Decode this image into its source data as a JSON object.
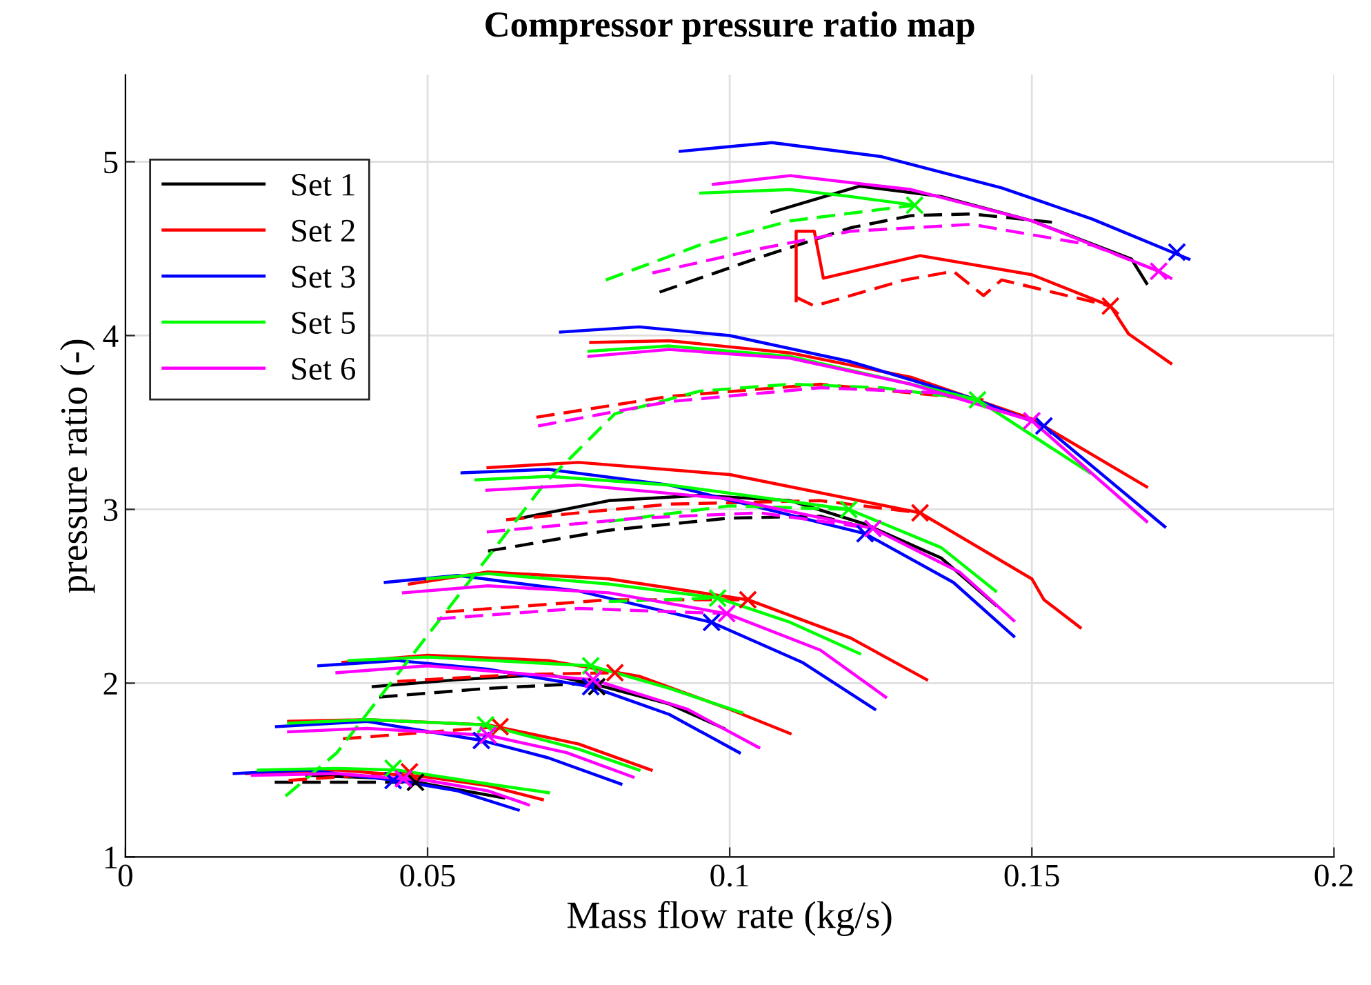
{
  "chart_data": {
    "type": "line",
    "title": "Compressor pressure ratio map",
    "xlabel": "Mass flow rate (kg/s)",
    "ylabel": "pressure ratio (-)",
    "xlim": [
      0,
      0.2
    ],
    "xticks": [
      0,
      0.05,
      0.1,
      0.15,
      0.2
    ],
    "ylim": [
      1,
      5.5
    ],
    "yticks": [
      1,
      2,
      3,
      4,
      5
    ],
    "grid": true,
    "legend": "top left",
    "series": [
      {
        "name": "Set 1",
        "color": "#000000",
        "line_style": "solid",
        "x": [
          0.03,
          0.045,
          0.0626
        ],
        "values": [
          1.47,
          1.45,
          1.34
        ]
      },
      {
        "color": "#000000",
        "line_style": "solid",
        "x": [
          0.041,
          0.055,
          0.07,
          0.078,
          0.09,
          0.099
        ],
        "values": [
          1.98,
          2.02,
          2.05,
          1.99,
          1.88,
          1.74
        ]
      },
      {
        "color": "#000000",
        "line_style": "solid",
        "x": [
          0.0655,
          0.08,
          0.095,
          0.11,
          0.122,
          0.135,
          0.144
        ],
        "values": [
          2.95,
          3.05,
          3.08,
          3.05,
          2.92,
          2.72,
          2.45
        ]
      },
      {
        "color": "#000000",
        "line_style": "solid",
        "x": [
          0.107,
          0.1215,
          0.135,
          0.15,
          0.1665,
          0.169
        ],
        "values": [
          4.71,
          4.86,
          4.8,
          4.66,
          4.44,
          4.3
        ]
      },
      {
        "color": "#000000",
        "line_style": "dashed",
        "x": [
          0.0247,
          0.048
        ],
        "values": [
          1.43,
          1.43
        ]
      },
      {
        "color": "#000000",
        "line_style": "dashed",
        "x": [
          0.042,
          0.06,
          0.077
        ],
        "values": [
          1.92,
          1.97,
          2.0
        ]
      },
      {
        "color": "#000000",
        "line_style": "dashed",
        "x": [
          0.06,
          0.08,
          0.1,
          0.115,
          0.122
        ],
        "values": [
          2.76,
          2.88,
          2.95,
          2.96,
          2.9
        ]
      },
      {
        "color": "#000000",
        "line_style": "dashed",
        "x": [
          0.0884,
          0.105,
          0.12,
          0.13,
          0.14,
          0.154
        ],
        "values": [
          4.25,
          4.45,
          4.62,
          4.69,
          4.7,
          4.65
        ]
      },
      {
        "name": "Set 2",
        "color": "#ff0000",
        "line_style": "solid",
        "x": [
          0.02,
          0.035,
          0.05,
          0.06,
          0.069
        ],
        "values": [
          1.48,
          1.5,
          1.46,
          1.41,
          1.33
        ]
      },
      {
        "color": "#ff0000",
        "line_style": "solid",
        "x": [
          0.027,
          0.04,
          0.06,
          0.075,
          0.087
        ],
        "values": [
          1.78,
          1.79,
          1.76,
          1.65,
          1.5
        ]
      },
      {
        "color": "#ff0000",
        "line_style": "solid",
        "x": [
          0.036,
          0.05,
          0.07,
          0.085,
          0.1,
          0.11
        ],
        "values": [
          2.12,
          2.16,
          2.13,
          2.04,
          1.85,
          1.71
        ]
      },
      {
        "color": "#ff0000",
        "line_style": "solid",
        "x": [
          0.047,
          0.06,
          0.08,
          0.103,
          0.12,
          0.1326
        ],
        "values": [
          2.57,
          2.64,
          2.6,
          2.48,
          2.26,
          2.02
        ]
      },
      {
        "color": "#ff0000",
        "line_style": "solid",
        "x": [
          0.06,
          0.075,
          0.1,
          0.1315,
          0.15,
          0.152,
          0.158
        ],
        "values": [
          3.24,
          3.27,
          3.2,
          2.98,
          2.6,
          2.48,
          2.32
        ]
      },
      {
        "color": "#ff0000",
        "line_style": "solid",
        "x": [
          0.077,
          0.09,
          0.11,
          0.13,
          0.15,
          0.169
        ],
        "values": [
          3.96,
          3.97,
          3.9,
          3.76,
          3.52,
          3.13
        ]
      },
      {
        "color": "#ff0000",
        "line_style": "solid",
        "x": [
          0.111,
          0.111,
          0.114,
          0.1155,
          0.1315,
          0.15,
          0.163,
          0.166,
          0.173
        ],
        "values": [
          4.2,
          4.6,
          4.6,
          4.33,
          4.46,
          4.35,
          4.17,
          4.01,
          3.84
        ]
      },
      {
        "color": "#ff0000",
        "line_style": "dashed",
        "x": [
          0.027,
          0.047
        ],
        "values": [
          1.44,
          1.49
        ]
      },
      {
        "color": "#ff0000",
        "line_style": "dashed",
        "x": [
          0.036,
          0.062
        ],
        "values": [
          1.68,
          1.75
        ]
      },
      {
        "color": "#ff0000",
        "line_style": "dashed",
        "x": [
          0.045,
          0.065,
          0.081
        ],
        "values": [
          2.01,
          2.05,
          2.06
        ]
      },
      {
        "color": "#ff0000",
        "line_style": "dashed",
        "x": [
          0.053,
          0.08,
          0.103
        ],
        "values": [
          2.41,
          2.48,
          2.48
        ]
      },
      {
        "color": "#ff0000",
        "line_style": "dashed",
        "x": [
          0.063,
          0.09,
          0.115,
          0.1315
        ],
        "values": [
          2.94,
          3.03,
          3.05,
          2.98
        ]
      },
      {
        "color": "#ff0000",
        "line_style": "dashed",
        "x": [
          0.068,
          0.09,
          0.115,
          0.142
        ],
        "values": [
          3.53,
          3.65,
          3.72,
          3.63
        ]
      },
      {
        "color": "#ff0000",
        "line_style": "dashed",
        "x": [
          0.111,
          0.114,
          0.129,
          0.137,
          0.142,
          0.145,
          0.163
        ],
        "values": [
          4.22,
          4.17,
          4.32,
          4.37,
          4.23,
          4.32,
          4.17
        ]
      },
      {
        "name": "Set 3",
        "color": "#0000ff",
        "line_style": "solid",
        "x": [
          0.018,
          0.03,
          0.045,
          0.055,
          0.065
        ],
        "values": [
          1.48,
          1.5,
          1.44,
          1.38,
          1.27
        ]
      },
      {
        "color": "#0000ff",
        "line_style": "solid",
        "x": [
          0.025,
          0.04,
          0.059,
          0.07,
          0.082
        ],
        "values": [
          1.75,
          1.78,
          1.67,
          1.57,
          1.42
        ]
      },
      {
        "color": "#0000ff",
        "line_style": "solid",
        "x": [
          0.032,
          0.045,
          0.06,
          0.077,
          0.09,
          0.1016
        ],
        "values": [
          2.1,
          2.13,
          2.08,
          1.98,
          1.82,
          1.6
        ]
      },
      {
        "color": "#0000ff",
        "line_style": "solid",
        "x": [
          0.043,
          0.055,
          0.075,
          0.097,
          0.112,
          0.124
        ],
        "values": [
          2.58,
          2.62,
          2.53,
          2.35,
          2.12,
          1.85
        ]
      },
      {
        "color": "#0000ff",
        "line_style": "solid",
        "x": [
          0.0557,
          0.07,
          0.09,
          0.1224,
          0.137,
          0.147
        ],
        "values": [
          3.21,
          3.23,
          3.14,
          2.86,
          2.58,
          2.27
        ]
      },
      {
        "color": "#0000ff",
        "line_style": "solid",
        "x": [
          0.072,
          0.085,
          0.1,
          0.12,
          0.14,
          0.152,
          0.172
        ],
        "values": [
          4.02,
          4.05,
          4.0,
          3.85,
          3.64,
          3.48,
          2.9
        ]
      },
      {
        "color": "#0000ff",
        "line_style": "solid",
        "x": [
          0.0918,
          0.107,
          0.125,
          0.145,
          0.16,
          0.176
        ],
        "values": [
          5.06,
          5.11,
          5.03,
          4.85,
          4.67,
          4.44
        ]
      },
      {
        "name": "Set 5",
        "color": "#00ff00",
        "line_style": "solid",
        "x": [
          0.022,
          0.035,
          0.045,
          0.06,
          0.07
        ],
        "values": [
          1.5,
          1.51,
          1.5,
          1.42,
          1.37
        ]
      },
      {
        "color": "#00ff00",
        "line_style": "solid",
        "x": [
          0.027,
          0.04,
          0.0596,
          0.075,
          0.085
        ],
        "values": [
          1.77,
          1.79,
          1.76,
          1.62,
          1.5
        ]
      },
      {
        "color": "#00ff00",
        "line_style": "solid",
        "x": [
          0.037,
          0.05,
          0.077,
          0.09,
          0.102
        ],
        "values": [
          2.13,
          2.15,
          2.1,
          1.97,
          1.83
        ]
      },
      {
        "color": "#00ff00",
        "line_style": "solid",
        "x": [
          0.05,
          0.06,
          0.08,
          0.098,
          0.11,
          0.1215
        ],
        "values": [
          2.6,
          2.63,
          2.57,
          2.49,
          2.35,
          2.17
        ]
      },
      {
        "color": "#00ff00",
        "line_style": "solid",
        "x": [
          0.058,
          0.07,
          0.09,
          0.1197,
          0.135,
          0.144
        ],
        "values": [
          3.17,
          3.19,
          3.14,
          3.0,
          2.78,
          2.53
        ]
      },
      {
        "color": "#00ff00",
        "line_style": "solid",
        "x": [
          0.0767,
          0.09,
          0.11,
          0.13,
          0.141,
          0.1596
        ],
        "values": [
          3.91,
          3.94,
          3.88,
          3.72,
          3.63,
          3.21
        ]
      },
      {
        "color": "#00ff00",
        "line_style": "solid",
        "x": [
          0.0952,
          0.11,
          0.12,
          0.1306
        ],
        "values": [
          4.82,
          4.84,
          4.8,
          4.75
        ]
      },
      {
        "color": "#00ff00",
        "line_style": "dashed",
        "x": [
          0.0265,
          0.035,
          0.045,
          0.055,
          0.0694,
          0.081,
          0.095,
          0.11,
          0.125,
          0.141
        ],
        "values": [
          1.35,
          1.6,
          2.05,
          2.5,
          3.15,
          3.55,
          3.68,
          3.72,
          3.7,
          3.63
        ]
      },
      {
        "color": "#00ff00",
        "line_style": "dashed",
        "x": [
          0.08,
          0.1,
          0.1197
        ],
        "values": [
          2.93,
          3.02,
          3.0
        ]
      },
      {
        "color": "#00ff00",
        "line_style": "dashed",
        "x": [
          0.08,
          0.098
        ],
        "values": [
          2.47,
          2.49
        ]
      },
      {
        "color": "#00ff00",
        "line_style": "dashed",
        "x": [
          0.0795,
          0.095,
          0.11,
          0.1306
        ],
        "values": [
          4.32,
          4.52,
          4.66,
          4.75
        ]
      },
      {
        "name": "Set 6",
        "color": "#ff00ff",
        "line_style": "solid",
        "x": [
          0.021,
          0.035,
          0.05,
          0.06,
          0.0667
        ],
        "values": [
          1.47,
          1.48,
          1.44,
          1.38,
          1.3
        ]
      },
      {
        "color": "#ff00ff",
        "line_style": "solid",
        "x": [
          0.027,
          0.04,
          0.06,
          0.073,
          0.084
        ],
        "values": [
          1.72,
          1.74,
          1.7,
          1.6,
          1.46
        ]
      },
      {
        "color": "#ff00ff",
        "line_style": "solid",
        "x": [
          0.035,
          0.05,
          0.0774,
          0.093,
          0.1048
        ],
        "values": [
          2.06,
          2.1,
          2.02,
          1.85,
          1.63
        ]
      },
      {
        "color": "#ff00ff",
        "line_style": "solid",
        "x": [
          0.046,
          0.06,
          0.08,
          0.0995,
          0.115,
          0.1258
        ],
        "values": [
          2.52,
          2.56,
          2.52,
          2.4,
          2.19,
          1.92
        ]
      },
      {
        "color": "#ff00ff",
        "line_style": "solid",
        "x": [
          0.0598,
          0.075,
          0.1,
          0.1237,
          0.138,
          0.147
        ],
        "values": [
          3.11,
          3.14,
          3.06,
          2.89,
          2.64,
          2.36
        ]
      },
      {
        "color": "#ff00ff",
        "line_style": "solid",
        "x": [
          0.0767,
          0.09,
          0.11,
          0.13,
          0.15,
          0.169
        ],
        "values": [
          3.88,
          3.92,
          3.87,
          3.72,
          3.51,
          2.93
        ]
      },
      {
        "color": "#ff00ff",
        "line_style": "solid",
        "x": [
          0.0973,
          0.11,
          0.13,
          0.15,
          0.171,
          0.173
        ],
        "values": [
          4.87,
          4.92,
          4.84,
          4.66,
          4.37,
          4.33
        ]
      },
      {
        "color": "#ff00ff",
        "line_style": "dashed",
        "x": [
          0.0516,
          0.075,
          0.0995
        ],
        "values": [
          2.37,
          2.43,
          2.4
        ]
      },
      {
        "color": "#ff00ff",
        "line_style": "dashed",
        "x": [
          0.0598,
          0.085,
          0.105,
          0.1237
        ],
        "values": [
          2.87,
          2.95,
          2.98,
          2.89
        ]
      },
      {
        "color": "#ff00ff",
        "line_style": "dashed",
        "x": [
          0.0683,
          0.09,
          0.115,
          0.135,
          0.15
        ],
        "values": [
          3.48,
          3.62,
          3.7,
          3.67,
          3.51
        ]
      },
      {
        "color": "#ff00ff",
        "line_style": "dashed",
        "x": [
          0.0872,
          0.105,
          0.12,
          0.14,
          0.16,
          0.171
        ],
        "values": [
          4.36,
          4.5,
          4.6,
          4.64,
          4.52,
          4.37
        ]
      },
      {
        "type": "scatter",
        "marker": "cross",
        "color": "#000000",
        "x": [
          0.048,
          0.078
        ],
        "values": [
          1.43,
          1.98
        ]
      },
      {
        "type": "scatter",
        "marker": "cross",
        "color": "#ff0000",
        "x": [
          0.047,
          0.062,
          0.081,
          0.103,
          0.1315,
          0.163
        ],
        "values": [
          1.49,
          1.75,
          2.06,
          2.48,
          2.98,
          4.17
        ]
      },
      {
        "type": "scatter",
        "marker": "cross",
        "color": "#0000ff",
        "x": [
          0.0443,
          0.0589,
          0.077,
          0.097,
          0.1224,
          0.152,
          0.174
        ],
        "values": [
          1.44,
          1.67,
          1.98,
          2.35,
          2.86,
          3.48,
          4.48
        ]
      },
      {
        "type": "scatter",
        "marker": "cross",
        "color": "#00ff00",
        "x": [
          0.0443,
          0.0596,
          0.077,
          0.098,
          0.1197,
          0.141,
          0.1306
        ],
        "values": [
          1.51,
          1.76,
          2.1,
          2.49,
          3.0,
          3.63,
          4.75
        ]
      },
      {
        "type": "scatter",
        "marker": "cross",
        "color": "#ff00ff",
        "x": [
          0.046,
          0.06,
          0.0774,
          0.0995,
          0.1237,
          0.15,
          0.171
        ],
        "values": [
          1.45,
          1.7,
          2.02,
          2.4,
          2.89,
          3.51,
          4.37
        ]
      }
    ]
  }
}
